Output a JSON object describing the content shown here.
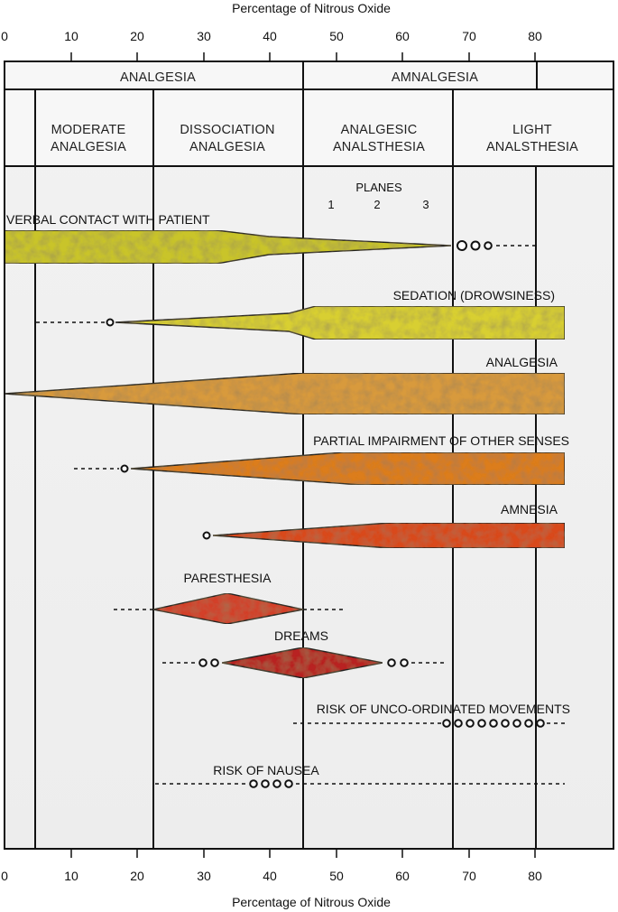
{
  "axis": {
    "title_top": "Percentage of Nitrous Oxide",
    "title_bottom": "Percentage of Nitrous Oxide",
    "ticks": [
      "0",
      "10",
      "20",
      "30",
      "40",
      "50",
      "60",
      "70",
      "80"
    ]
  },
  "header": {
    "analgesia": "ANALGESIA",
    "amnalgesia": "AMNALGESIA",
    "moderate": [
      "MODERATE",
      "ANALGESIA"
    ],
    "dissociation": [
      "DISSOCIATION",
      "ANALGESIA"
    ],
    "analgesic": [
      "ANALGESIC",
      "ANALSTHESIA"
    ],
    "light": [
      "LIGHT",
      "ANALSTHESIA"
    ]
  },
  "planes": {
    "title": "PLANES",
    "numbers": [
      "1",
      "2",
      "3"
    ]
  },
  "bands": {
    "verbal": "VERBAL CONTACT WITH PATIENT",
    "sedation": "SEDATION (DROWSINESS)",
    "analgesia": "ANALGESIA",
    "partial": "PARTIAL IMPAIRMENT OF OTHER SENSES",
    "amnesia": "AMNESIA",
    "paresthesia": "PARESTHESIA",
    "dreams": "DREAMS",
    "uncoordinated": "RISK OF UNCO-ORDINATED MOVEMENTS",
    "nausea": "RISK OF NAUSEA"
  },
  "colors": {
    "verbal": "#c9c42a",
    "sedation": "#d8cf33",
    "analgesia": "#d89a3e",
    "partial": "#dc7d1a",
    "amnesia": "#d9481e",
    "paresthesia": "#d3412a",
    "dreams": "#b82222"
  }
}
